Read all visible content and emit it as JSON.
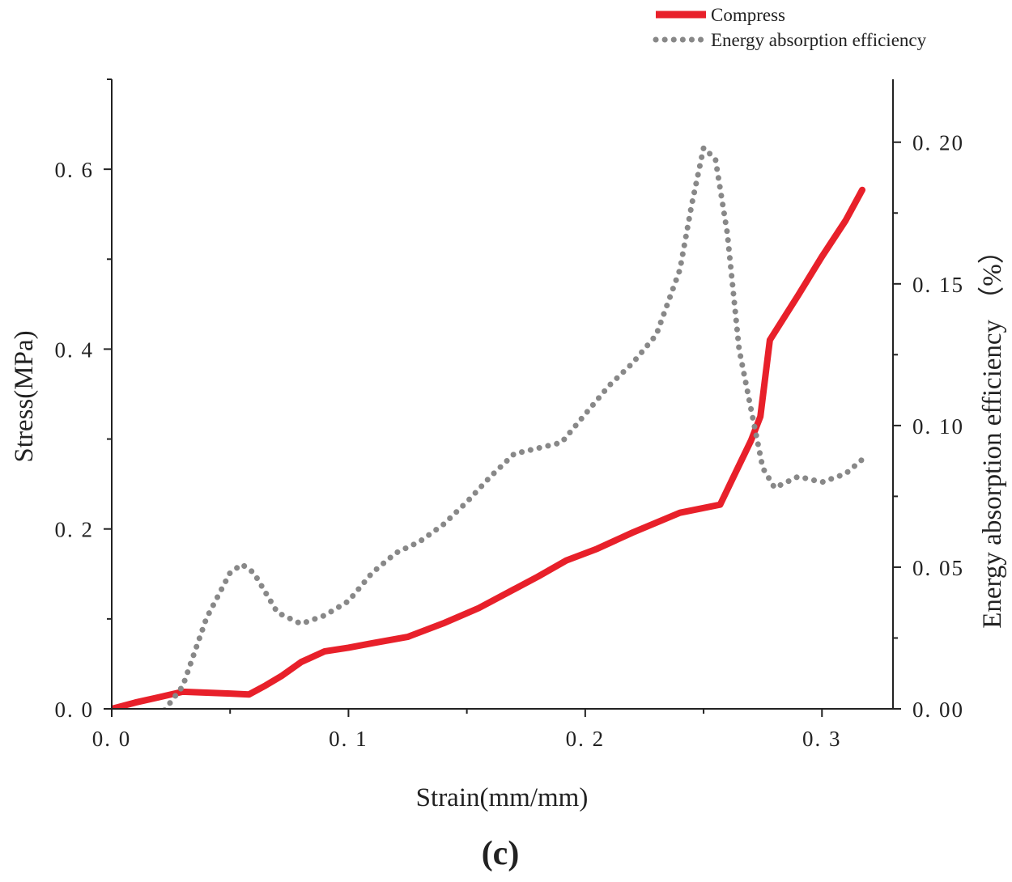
{
  "chart_data": {
    "type": "line",
    "panel_label": "(c)",
    "xlabel": "Strain(mm/mm)",
    "ylabel_left": "Stress(MPa)",
    "ylabel_right": "Energy absorption efficiency （%）",
    "xlim": [
      0,
      0.33
    ],
    "ylim_left": [
      0,
      0.7
    ],
    "ylim_right": [
      0,
      0.2222
    ],
    "x_ticks": [
      0.0,
      0.1,
      0.2,
      0.3
    ],
    "x_tick_labels": [
      "0. 0",
      "0. 1",
      "0. 2",
      "0. 3"
    ],
    "y_left_ticks": [
      0.0,
      0.2,
      0.4,
      0.6
    ],
    "y_left_tick_labels": [
      "0. 0",
      "0. 2",
      "0. 4",
      "0. 6"
    ],
    "y_right_ticks": [
      0.0,
      0.05,
      0.1,
      0.15,
      0.2
    ],
    "y_right_tick_labels": [
      "0. 00",
      "0. 05",
      "0. 10",
      "0. 15",
      "0. 20"
    ],
    "legend_position": "top-right",
    "grid": false,
    "series": [
      {
        "name": "Compress",
        "axis": "left",
        "color": "#e8202a",
        "style": "solid",
        "x": [
          0.0,
          0.01,
          0.02,
          0.03,
          0.04,
          0.05,
          0.058,
          0.065,
          0.072,
          0.08,
          0.09,
          0.1,
          0.11,
          0.125,
          0.14,
          0.155,
          0.17,
          0.18,
          0.192,
          0.205,
          0.22,
          0.24,
          0.257,
          0.263,
          0.27,
          0.274,
          0.278,
          0.29,
          0.3,
          0.31,
          0.317
        ],
        "y": [
          0.0,
          0.007,
          0.013,
          0.019,
          0.018,
          0.017,
          0.016,
          0.026,
          0.037,
          0.052,
          0.064,
          0.068,
          0.073,
          0.08,
          0.095,
          0.112,
          0.133,
          0.147,
          0.165,
          0.178,
          0.196,
          0.218,
          0.227,
          0.26,
          0.298,
          0.325,
          0.41,
          0.46,
          0.503,
          0.543,
          0.577
        ]
      },
      {
        "name": "Energy absorption efficiency",
        "axis": "right",
        "color": "#888888",
        "style": "dotted",
        "x": [
          0.02,
          0.03,
          0.04,
          0.05,
          0.055,
          0.06,
          0.07,
          0.08,
          0.09,
          0.1,
          0.11,
          0.12,
          0.13,
          0.14,
          0.15,
          0.16,
          0.17,
          0.18,
          0.19,
          0.2,
          0.21,
          0.22,
          0.23,
          0.24,
          0.245,
          0.25,
          0.255,
          0.26,
          0.265,
          0.27,
          0.275,
          0.28,
          0.29,
          0.3,
          0.31,
          0.317
        ],
        "y": [
          -0.003,
          0.008,
          0.032,
          0.048,
          0.051,
          0.048,
          0.034,
          0.03,
          0.033,
          0.038,
          0.048,
          0.055,
          0.059,
          0.065,
          0.073,
          0.082,
          0.09,
          0.092,
          0.094,
          0.104,
          0.114,
          0.122,
          0.132,
          0.155,
          0.178,
          0.198,
          0.194,
          0.168,
          0.127,
          0.106,
          0.085,
          0.078,
          0.082,
          0.08,
          0.083,
          0.088
        ]
      }
    ]
  }
}
